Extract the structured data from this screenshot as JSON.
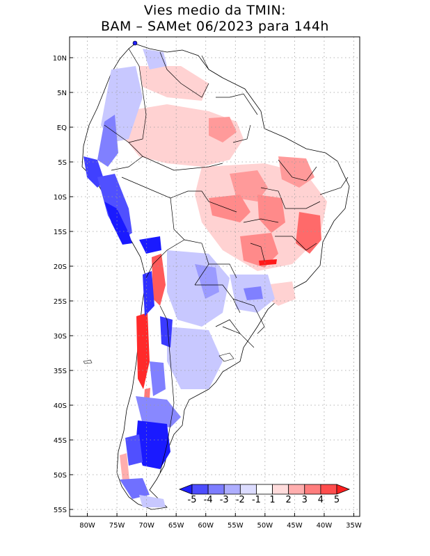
{
  "title": {
    "line1": "Vies medio da TMIN:",
    "line2": "BAM – SAMet 06/2023  para 144h"
  },
  "map": {
    "lon_range": [
      -83,
      -34
    ],
    "lat_range": [
      -56,
      13
    ],
    "lat_ticks": [
      {
        "value": 10,
        "label": "10N"
      },
      {
        "value": 5,
        "label": "5N"
      },
      {
        "value": 0,
        "label": "EQ"
      },
      {
        "value": -5,
        "label": "5S"
      },
      {
        "value": -10,
        "label": "10S"
      },
      {
        "value": -15,
        "label": "15S"
      },
      {
        "value": -20,
        "label": "20S"
      },
      {
        "value": -25,
        "label": "25S"
      },
      {
        "value": -30,
        "label": "30S"
      },
      {
        "value": -35,
        "label": "35S"
      },
      {
        "value": -40,
        "label": "40S"
      },
      {
        "value": -45,
        "label": "45S"
      },
      {
        "value": -50,
        "label": "50S"
      },
      {
        "value": -55,
        "label": "55S"
      }
    ],
    "lon_ticks": [
      {
        "value": -80,
        "label": "80W"
      },
      {
        "value": -75,
        "label": "75W"
      },
      {
        "value": -70,
        "label": "70W"
      },
      {
        "value": -65,
        "label": "65W"
      },
      {
        "value": -60,
        "label": "60W"
      },
      {
        "value": -55,
        "label": "55W"
      },
      {
        "value": -50,
        "label": "50W"
      },
      {
        "value": -45,
        "label": "45W"
      },
      {
        "value": -40,
        "label": "40W"
      },
      {
        "value": -35,
        "label": "35W"
      }
    ]
  },
  "colorbar": {
    "levels": [
      "-5",
      "-4",
      "-3",
      "-2",
      "-1",
      "1",
      "2",
      "3",
      "4",
      "5"
    ],
    "colors": [
      "#1e1eff",
      "#4d4dff",
      "#7d7dff",
      "#aeaeff",
      "#dcdcff",
      "#ffffff",
      "#ffdcdc",
      "#ffaeae",
      "#ff7d7d",
      "#ff4d4d",
      "#ff1e1e"
    ]
  },
  "colors": {
    "strong_blue": "#1a1aff",
    "mid_blue": "#6f6fff",
    "light_blue": "#c8c8ff",
    "light_red": "#ffd2d2",
    "mid_red": "#ff8a8a",
    "strong_red": "#ff1a1a"
  }
}
